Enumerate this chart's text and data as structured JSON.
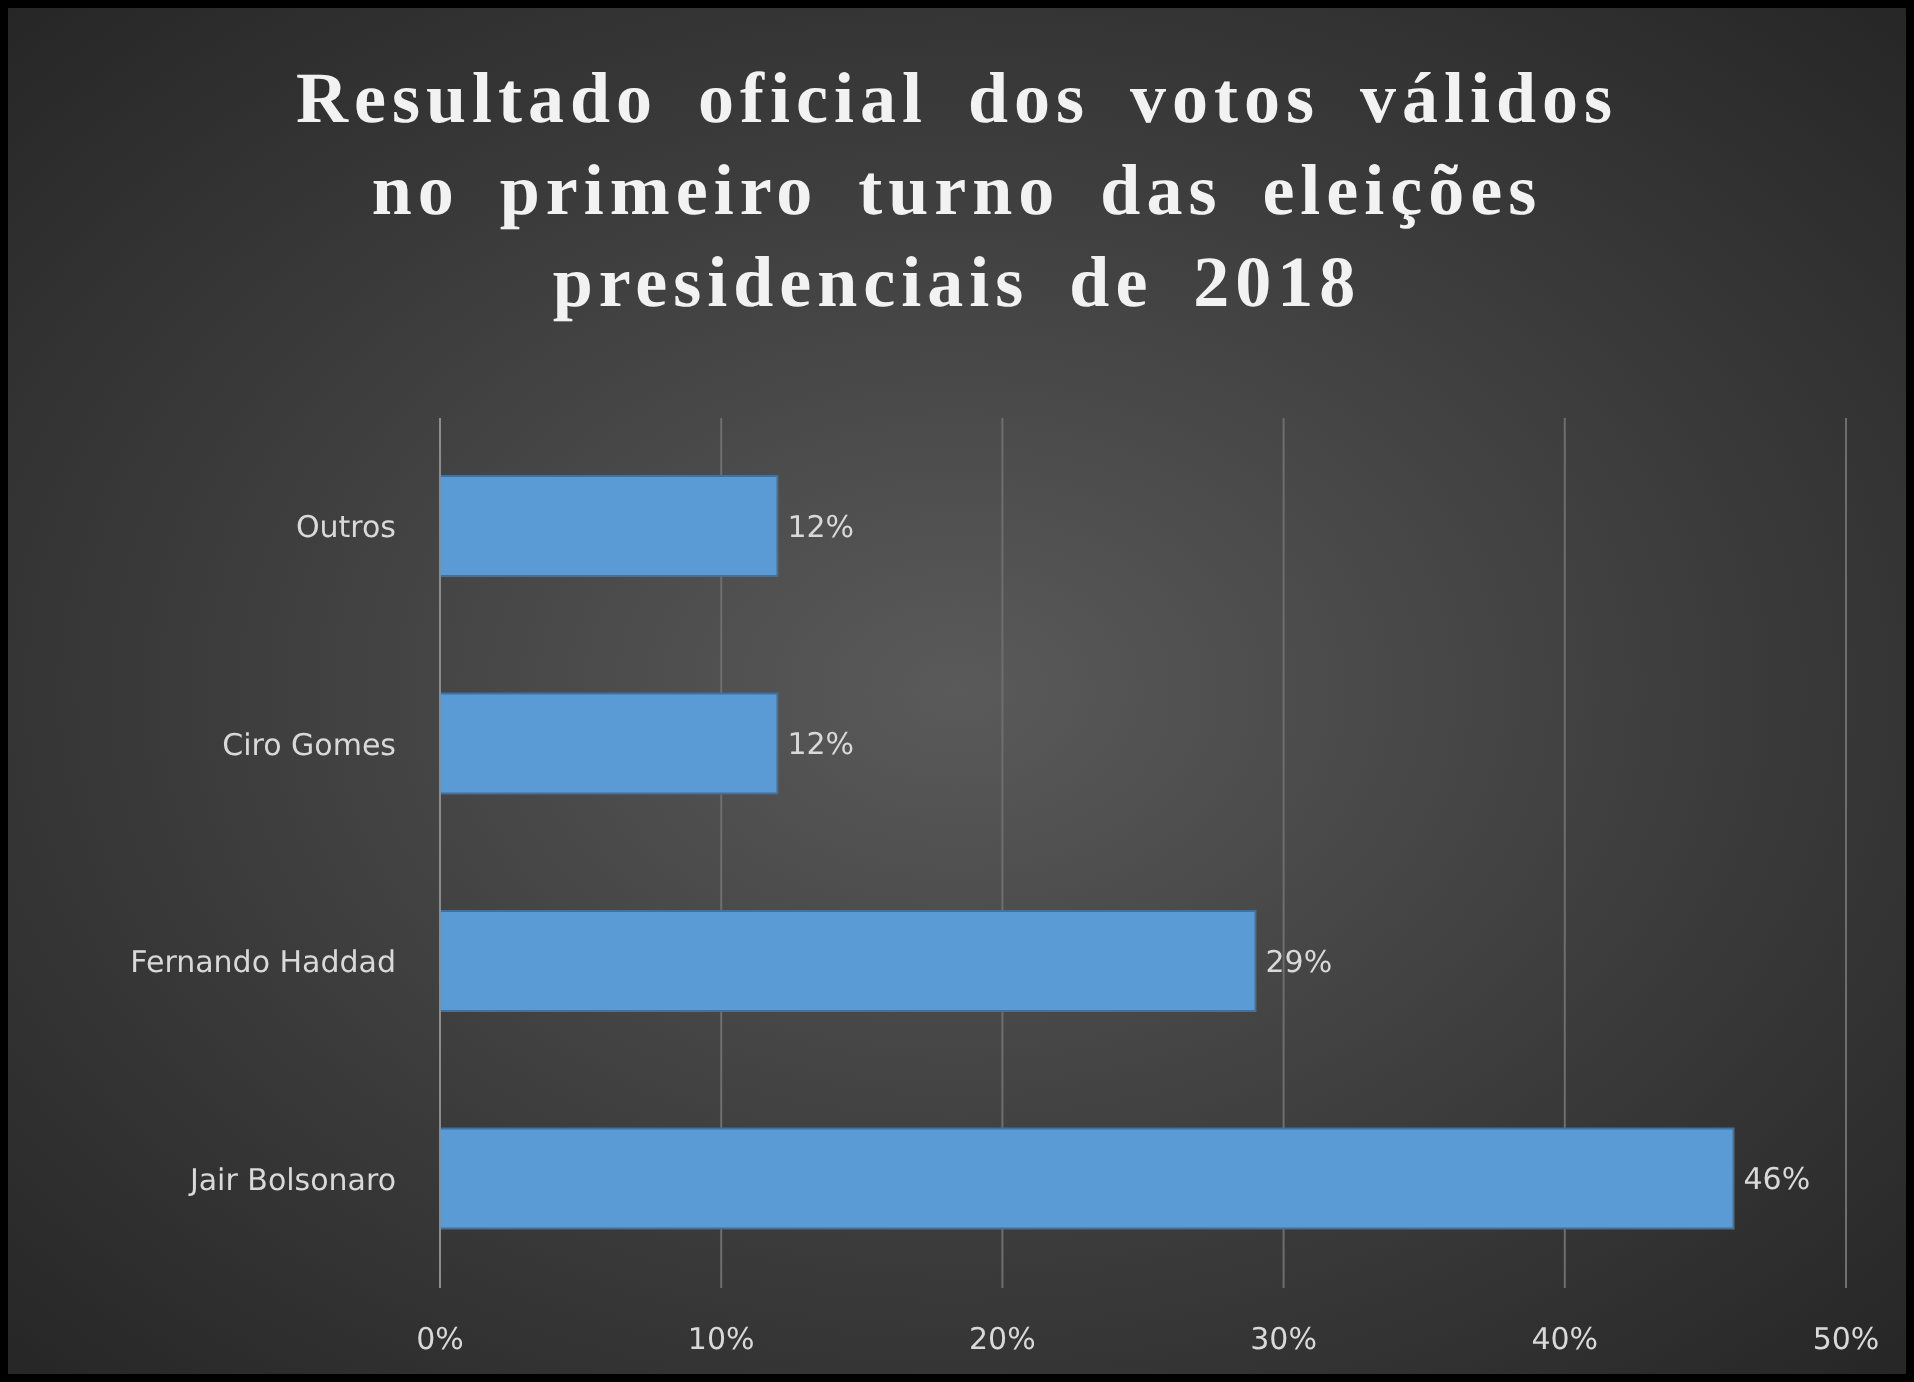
{
  "chart_data": {
    "type": "bar",
    "orientation": "horizontal",
    "title": "Resultado oficial dos votos válidos no primeiro turno das eleições presidenciais de 2018",
    "categories": [
      "Outros",
      "Ciro Gomes",
      "Fernando Haddad",
      "Jair Bolsonaro"
    ],
    "values": [
      12,
      12,
      29,
      46
    ],
    "color": "#5b9bd5",
    "xlim": [
      0,
      50
    ],
    "xticks": [
      {
        "value": 0,
        "label": "0%"
      },
      {
        "value": 10,
        "label": "10%"
      },
      {
        "value": 20,
        "label": "20%"
      },
      {
        "value": 30,
        "label": "30%"
      },
      {
        "value": 40,
        "label": "40%"
      },
      {
        "value": 50,
        "label": "50%"
      }
    ],
    "value_labels": [
      "12%",
      "12%",
      "29%",
      "46%"
    ],
    "grid": "x",
    "legend": false
  }
}
